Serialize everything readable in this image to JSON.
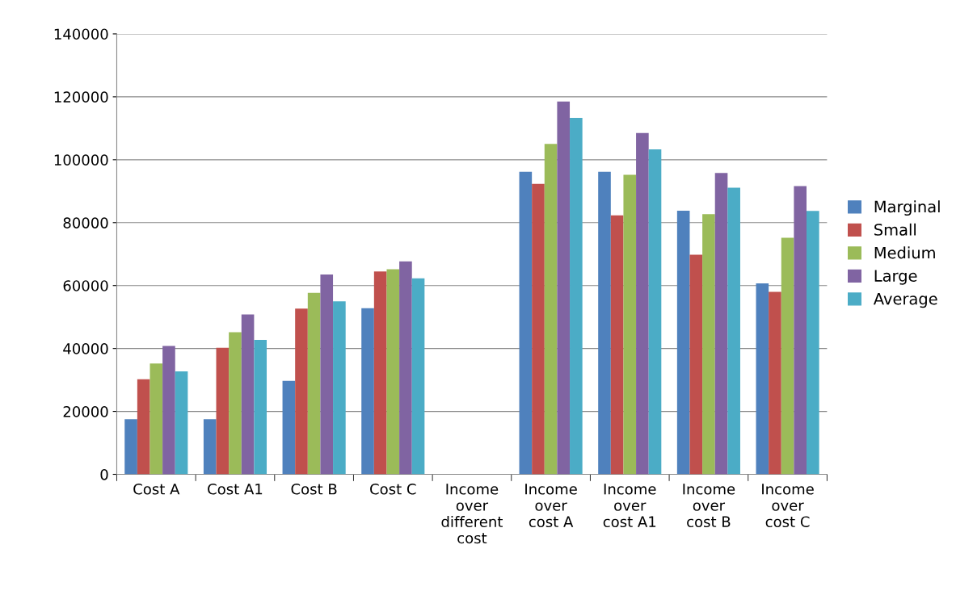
{
  "chart_data": {
    "type": "bar",
    "categories": [
      "Cost A",
      "Cost A1",
      "Cost B",
      "Cost C",
      "Income\nover\ndifferent\ncost",
      "Income\nover\ncost A",
      "Income\nover\ncost A1",
      "Income\nover\ncost B",
      "Income\nover\ncost C"
    ],
    "series": [
      {
        "name": "Marginal",
        "color": "#4f81bd",
        "values": [
          17500,
          17500,
          29700,
          52800,
          null,
          96200,
          96200,
          83800,
          60700
        ]
      },
      {
        "name": "Small",
        "color": "#c0504d",
        "values": [
          30200,
          40200,
          52700,
          64500,
          null,
          92300,
          82300,
          69800,
          58000
        ]
      },
      {
        "name": "Medium",
        "color": "#9bbb59",
        "values": [
          35200,
          45200,
          57700,
          65200,
          null,
          105000,
          95200,
          82700,
          75200
        ]
      },
      {
        "name": "Large",
        "color": "#8064a2",
        "values": [
          40800,
          50800,
          63500,
          67700,
          null,
          118500,
          108500,
          95800,
          91600
        ]
      },
      {
        "name": "Average",
        "color": "#4bacc6",
        "values": [
          32700,
          42700,
          55000,
          62300,
          null,
          113300,
          103300,
          91100,
          83700
        ]
      }
    ],
    "ylim": [
      0,
      140000
    ],
    "yticks": [
      0,
      20000,
      40000,
      60000,
      80000,
      100000,
      120000,
      140000
    ],
    "grid": "y",
    "legend": "right"
  }
}
